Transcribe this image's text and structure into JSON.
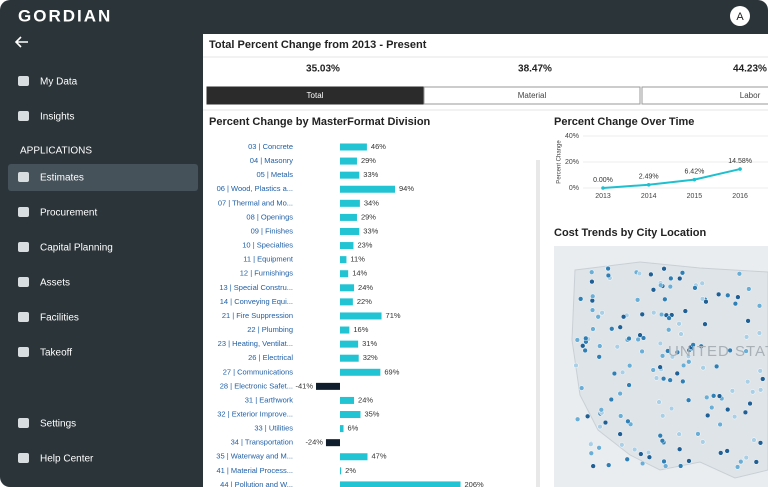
{
  "sidebar": {
    "logo": "GORDIAN",
    "nav": [
      "My Data",
      "Insights"
    ],
    "section": "APPLICATIONS",
    "apps": [
      "Estimates",
      "Procurement",
      "Capital Planning",
      "Assets",
      "Facilities",
      "Takeoff"
    ],
    "footer": [
      "Settings",
      "Help Center"
    ]
  },
  "header": {
    "avatar": "A"
  },
  "summary": {
    "title": "Total Percent Change from 2013 - Present",
    "values": [
      "35.03%",
      "38.47%",
      "44.23%"
    ],
    "tabs": [
      "Total",
      "Material",
      "Labor"
    ]
  },
  "chart_data": [
    {
      "type": "bar",
      "title": "Percent Change by MasterFormat Division",
      "orientation": "horizontal",
      "categories": [
        "03 | Concrete",
        "04 | Masonry",
        "05 | Metals",
        "06 | Wood, Plastics a...",
        "07 | Thermal and Mo...",
        "08 | Openings",
        "09 | Finishes",
        "10 | Specialties",
        "11 | Equipment",
        "12 | Furnishings",
        "13 | Special Constru...",
        "14 | Conveying Equi...",
        "21 | Fire Suppression",
        "22 | Plumbing",
        "23 | Heating, Ventilat...",
        "26 | Electrical",
        "27 | Communications",
        "28 | Electronic Safet...",
        "31 | Earthwork",
        "32 | Exterior Improve...",
        "33 | Utilities",
        "34 | Transportation",
        "35 | Waterway and M...",
        "41 | Material Process...",
        "44 | Pollution and W..."
      ],
      "values": [
        46,
        29,
        33,
        94,
        34,
        29,
        33,
        23,
        11,
        14,
        24,
        22,
        71,
        16,
        31,
        32,
        69,
        -41,
        24,
        35,
        6,
        -24,
        47,
        2,
        206
      ],
      "value_labels": [
        "46%",
        "29%",
        "33%",
        "94%",
        "34%",
        "29%",
        "33%",
        "23%",
        "11%",
        "14%",
        "24%",
        "22%",
        "71%",
        "16%",
        "31%",
        "32%",
        "69%",
        "-41%",
        "24%",
        "35%",
        "6%",
        "-24%",
        "47%",
        "2%",
        "206%"
      ],
      "color": "#22c3d3",
      "negative_color": "#0f1d2c"
    },
    {
      "type": "line",
      "title": "Percent Change Over Time",
      "y_label": "Percent Change",
      "categories": [
        "2013",
        "2014",
        "2015",
        "2016"
      ],
      "series": [
        {
          "color": "#1ec0d0",
          "values": [
            0,
            2.49,
            6.42,
            14.58
          ],
          "value_labels": [
            "0.00%",
            "2.49%",
            "6.42%",
            "14.58%"
          ]
        }
      ],
      "ylim": [
        0,
        40
      ],
      "yticks": [
        {
          "value": 0,
          "label": "0%"
        },
        {
          "value": 20,
          "label": "20%"
        },
        {
          "value": 40,
          "label": "40%"
        }
      ]
    }
  ],
  "map": {
    "title": "Cost Trends by City Location",
    "label": "UNITED STATES"
  }
}
